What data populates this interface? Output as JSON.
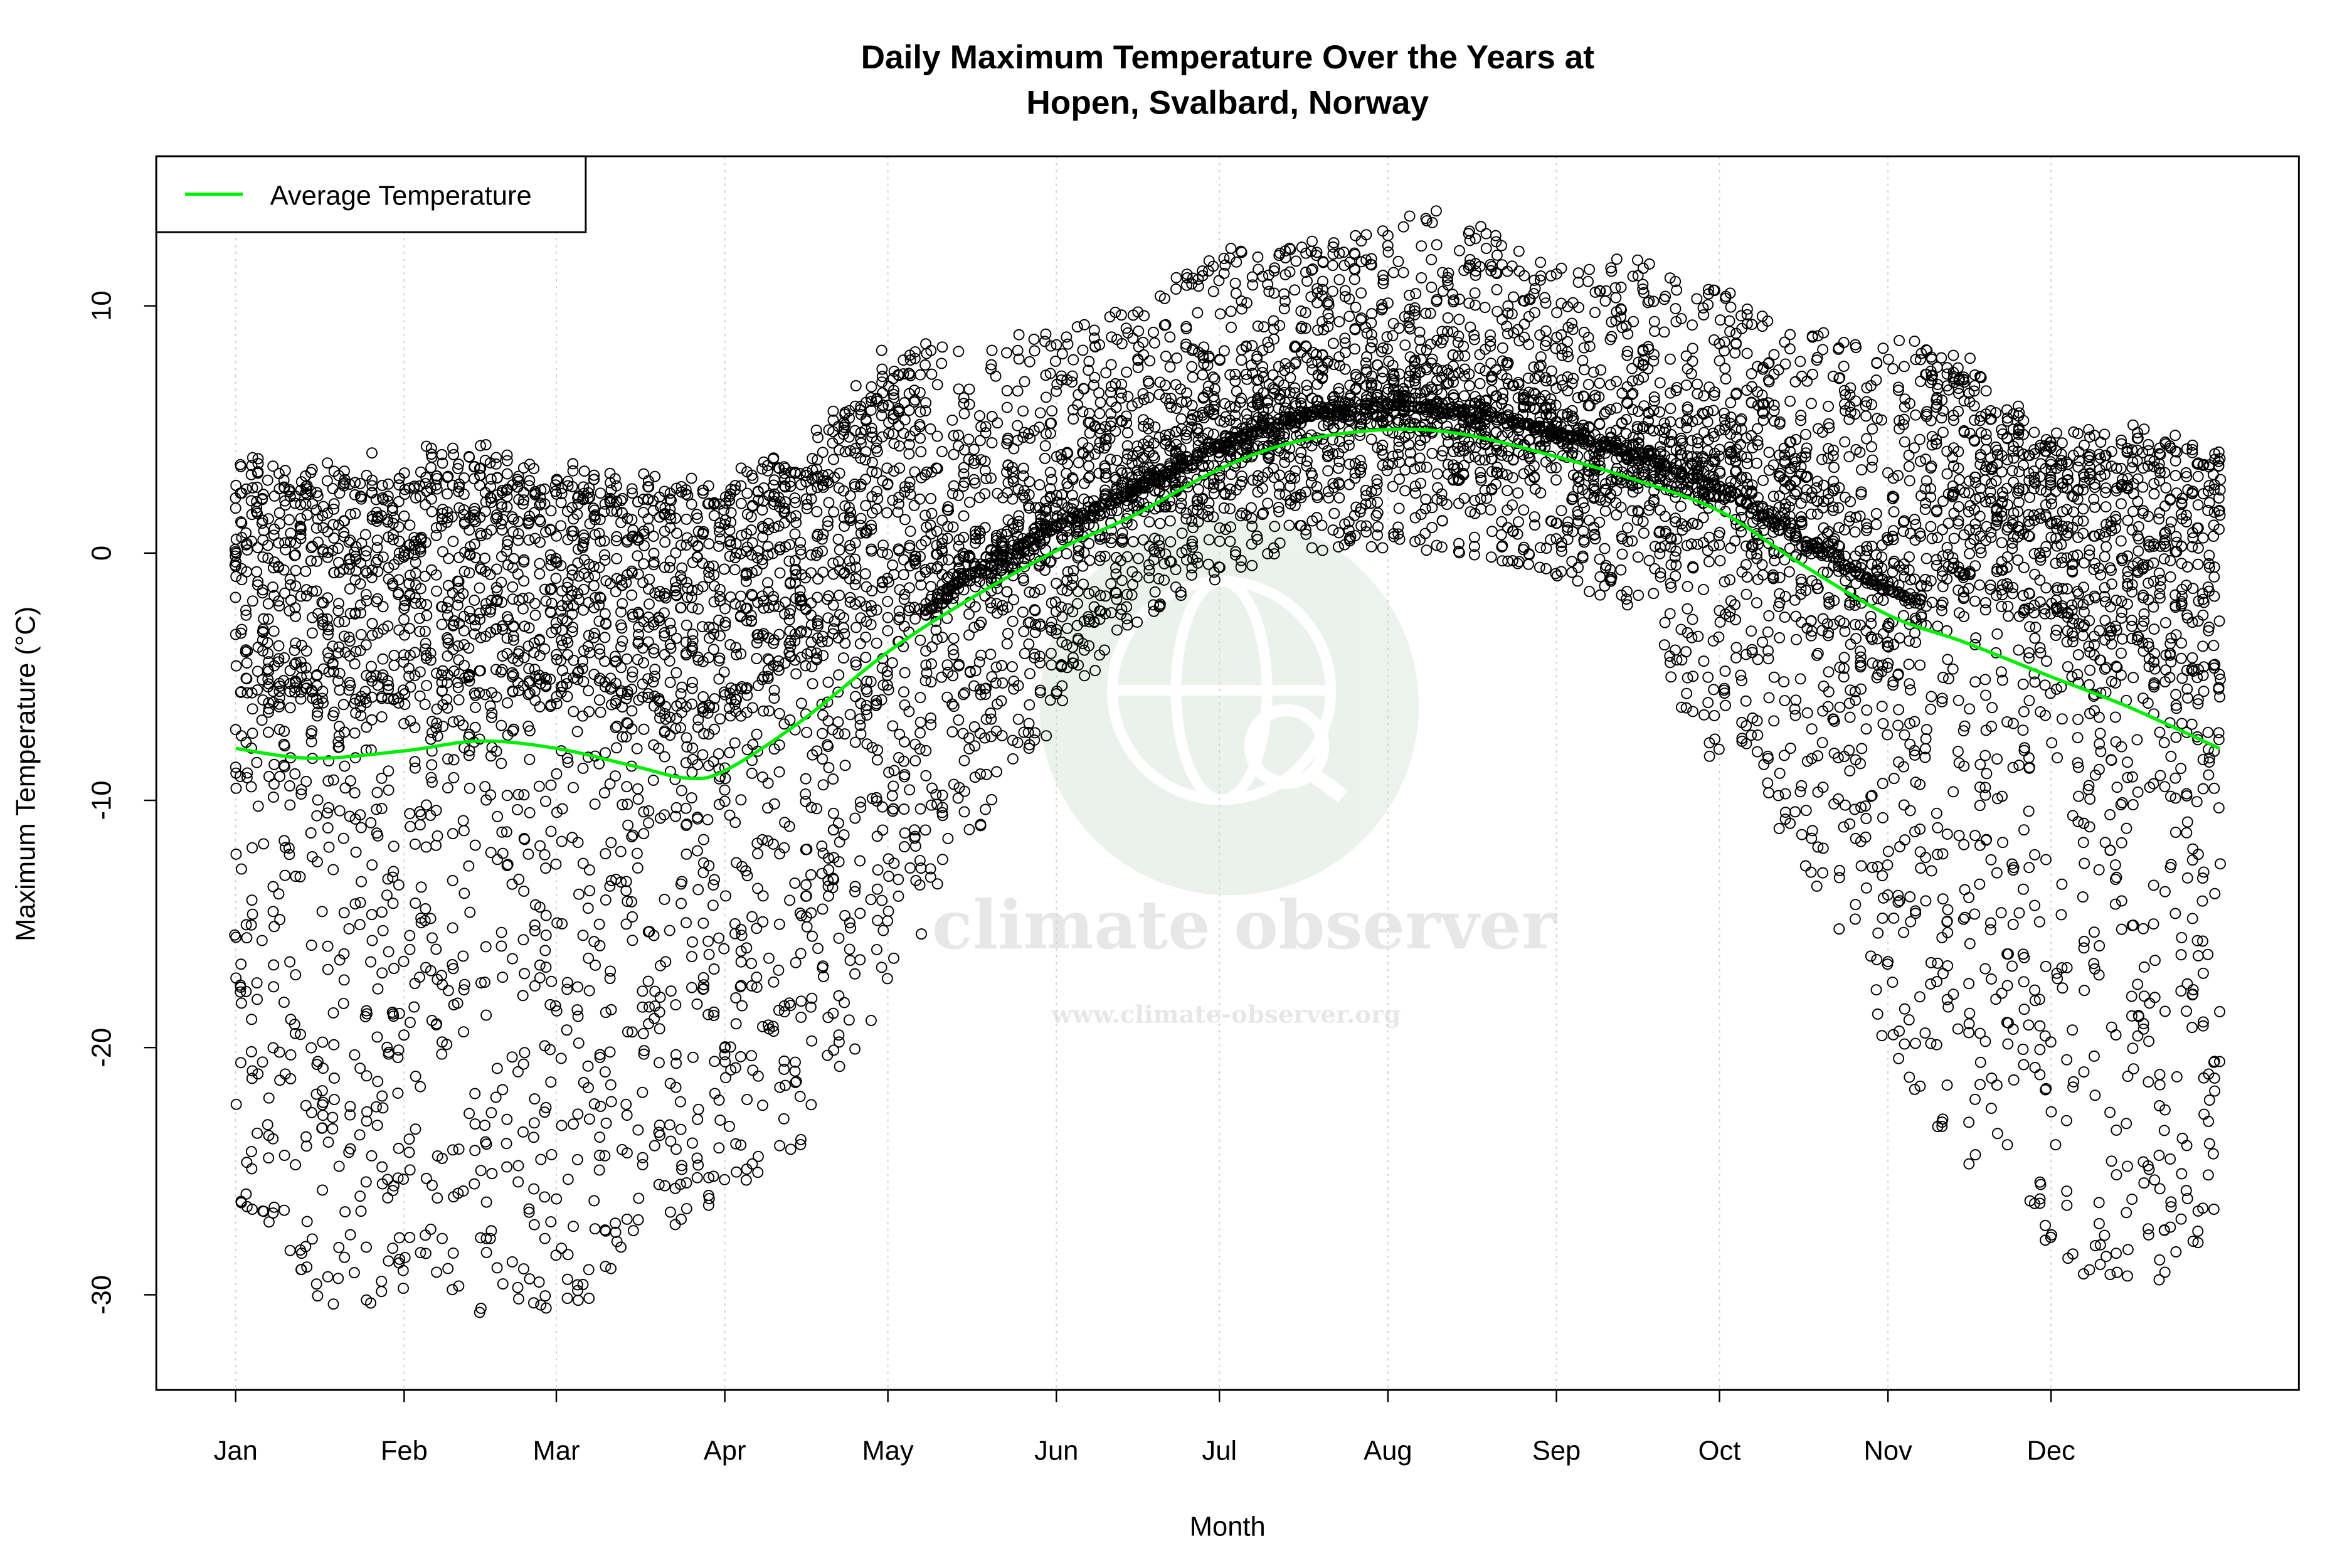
{
  "chart_data": {
    "type": "scatter",
    "title": "Daily Maximum Temperature Over the Years at\nHopen, Svalbard, Norway",
    "title_lines": [
      "Daily Maximum Temperature Over the Years at",
      "Hopen, Svalbard, Norway"
    ],
    "xlabel": "Month",
    "ylabel": "Maximum Temperature (°C)",
    "xlim": [
      -13.6,
      380.6
    ],
    "ylim": [
      -33.85,
      16.05
    ],
    "grid": "vertical dotted at month ticks",
    "x_ticks": [
      {
        "label": "Jan",
        "day": 1
      },
      {
        "label": "Feb",
        "day": 32
      },
      {
        "label": "Mar",
        "day": 60
      },
      {
        "label": "Apr",
        "day": 91
      },
      {
        "label": "May",
        "day": 121
      },
      {
        "label": "Jun",
        "day": 152
      },
      {
        "label": "Jul",
        "day": 182
      },
      {
        "label": "Aug",
        "day": 213
      },
      {
        "label": "Sep",
        "day": 244
      },
      {
        "label": "Oct",
        "day": 274
      },
      {
        "label": "Nov",
        "day": 305
      },
      {
        "label": "Dec",
        "day": 335
      }
    ],
    "y_ticks": [
      10,
      0,
      -10,
      -20,
      -30
    ],
    "legend": {
      "position": "top-left",
      "entries": [
        {
          "name": "Average Temperature",
          "color": "#00ee00"
        }
      ]
    },
    "average_line": {
      "name": "Average Temperature",
      "color": "#00ee00",
      "day": [
        1,
        15,
        32,
        46,
        60,
        74,
        84,
        91,
        105,
        121,
        135,
        152,
        166,
        182,
        196,
        213,
        227,
        244,
        258,
        274,
        288,
        305,
        319,
        335,
        349,
        366
      ],
      "temp": [
        -7.9,
        -8.3,
        -8.0,
        -7.6,
        -7.9,
        -8.6,
        -9.1,
        -8.8,
        -6.8,
        -4.0,
        -2.0,
        0.1,
        1.5,
        3.4,
        4.5,
        5.0,
        4.8,
        3.9,
        3.0,
        1.7,
        -0.3,
        -2.5,
        -3.6,
        -5.0,
        -6.2,
        -7.9
      ]
    },
    "daily_points_envelope": {
      "marker": "open circle",
      "color": "#000000",
      "day": [
        1,
        15,
        32,
        46,
        60,
        74,
        91,
        105,
        121,
        135,
        152,
        166,
        182,
        196,
        213,
        222,
        244,
        258,
        274,
        288,
        305,
        319,
        335,
        349,
        366
      ],
      "min": [
        -26,
        -31,
        -30,
        -31,
        -32,
        -29,
        -26,
        -24,
        -18,
        -12,
        -7,
        -3,
        -1,
        0,
        0,
        0,
        -1,
        -3,
        -9,
        -12,
        -20,
        -25,
        -28,
        -31.5,
        -27
      ],
      "max": [
        4.5,
        3.5,
        4.5,
        4.8,
        3.8,
        3.5,
        3.5,
        4.5,
        8.5,
        9,
        9,
        10,
        12.3,
        12.5,
        13.3,
        14.2,
        11.5,
        12,
        11,
        9,
        9,
        8.3,
        5,
        5.5,
        5
      ]
    }
  },
  "watermark": {
    "name": "climate observer",
    "url": "www.climate-observer.org"
  }
}
